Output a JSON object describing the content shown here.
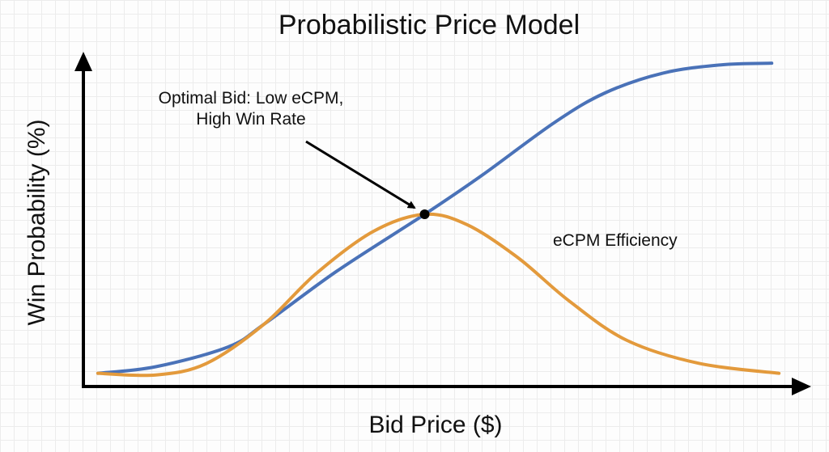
{
  "chart_data": {
    "type": "line",
    "title": "Probabilistic Price Model",
    "xlabel": "Bid Price ($)",
    "ylabel": "Win Probability (%)",
    "xlim": [
      0,
      1
    ],
    "ylim": [
      0,
      1
    ],
    "grid": true,
    "series": [
      {
        "name": "",
        "color": "#4a72b8",
        "points": [
          [
            0.02,
            0.04
          ],
          [
            0.1,
            0.06
          ],
          [
            0.2,
            0.12
          ],
          [
            0.25,
            0.19
          ],
          [
            0.35,
            0.35
          ],
          [
            0.471,
            0.522
          ],
          [
            0.55,
            0.64
          ],
          [
            0.65,
            0.8
          ],
          [
            0.72,
            0.89
          ],
          [
            0.8,
            0.95
          ],
          [
            0.88,
            0.975
          ],
          [
            0.95,
            0.98
          ]
        ]
      },
      {
        "name": "eCPM Efficiency",
        "color": "#e39a3c",
        "points": [
          [
            0.02,
            0.04
          ],
          [
            0.1,
            0.035
          ],
          [
            0.17,
            0.07
          ],
          [
            0.25,
            0.19
          ],
          [
            0.32,
            0.34
          ],
          [
            0.4,
            0.47
          ],
          [
            0.471,
            0.522
          ],
          [
            0.53,
            0.49
          ],
          [
            0.6,
            0.39
          ],
          [
            0.67,
            0.26
          ],
          [
            0.75,
            0.14
          ],
          [
            0.85,
            0.07
          ],
          [
            0.96,
            0.04
          ]
        ]
      }
    ],
    "annotation": {
      "lines": [
        "Optimal Bid: Low eCPM,",
        "High Win Rate"
      ],
      "point": [
        0.471,
        0.522
      ]
    }
  }
}
